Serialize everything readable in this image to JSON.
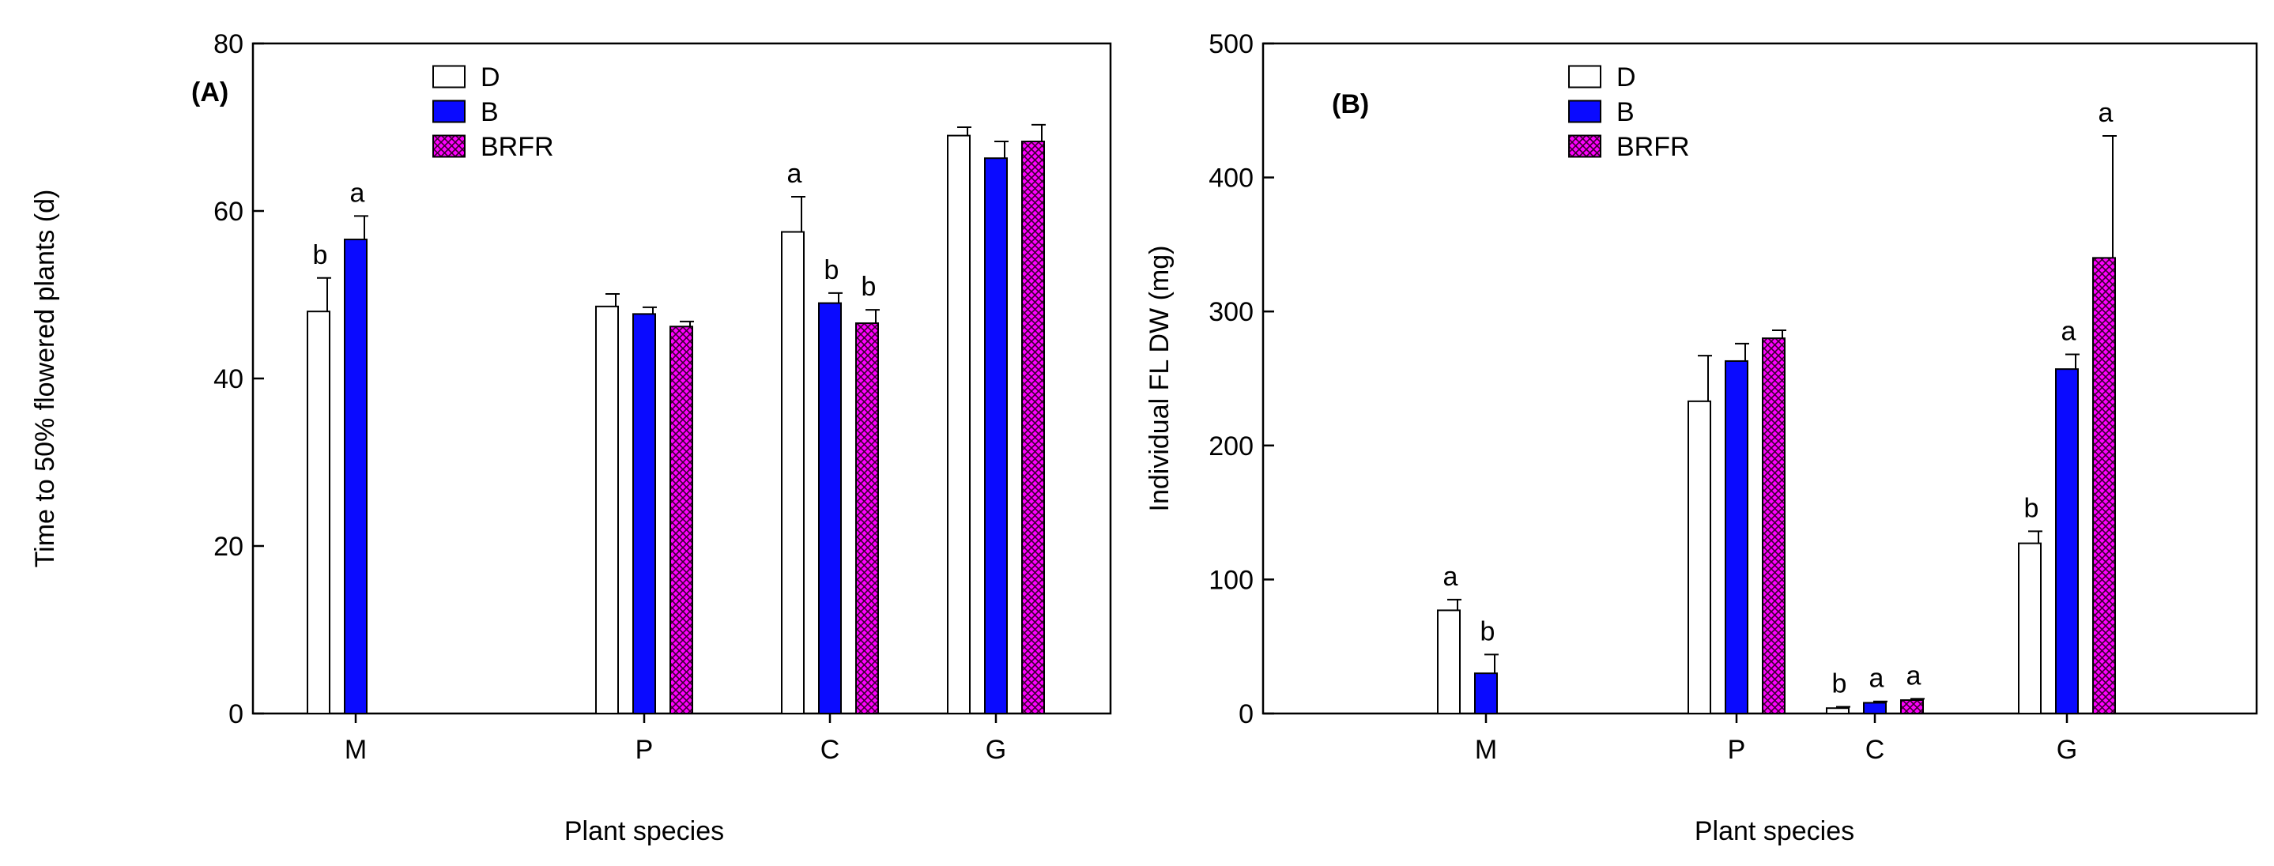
{
  "colors": {
    "D": "#ffffff",
    "B": "#0a0aff",
    "BRFR": "#ff00ff",
    "BRFR_hatch": "#3a0030",
    "axis": "#000000"
  },
  "chart_data": [
    {
      "type": "bar",
      "panel_label": "(A)",
      "categories": [
        "M",
        "P",
        "C",
        "G"
      ],
      "xlabel": "Plant species",
      "ylabel": "Time to 50% flowered plants (d)",
      "ylim": [
        0,
        80
      ],
      "yticks": [
        0,
        20,
        40,
        60,
        80
      ],
      "legend_position": "top-center",
      "series": [
        {
          "name": "D",
          "values": [
            48,
            48.6,
            57.5,
            69
          ],
          "errors": [
            4,
            1.5,
            4.2,
            1
          ],
          "letters": [
            "b",
            "",
            "a",
            ""
          ]
        },
        {
          "name": "B",
          "values": [
            56.6,
            47.7,
            49,
            66.3
          ],
          "errors": [
            2.8,
            0.8,
            1.2,
            2
          ],
          "letters": [
            "a",
            "",
            "b",
            ""
          ]
        },
        {
          "name": "BRFR",
          "values": [
            null,
            46.2,
            46.6,
            68.3
          ],
          "errors": [
            null,
            0.6,
            1.6,
            2
          ],
          "letters": [
            "",
            "",
            "b",
            ""
          ]
        }
      ]
    },
    {
      "type": "bar",
      "panel_label": "(B)",
      "categories": [
        "M",
        "P",
        "C",
        "G"
      ],
      "xlabel": "Plant species",
      "ylabel": "Individual FL DW (mg)",
      "ylim": [
        0,
        500
      ],
      "yticks": [
        0,
        100,
        200,
        300,
        400,
        500
      ],
      "legend_position": "top-center",
      "series": [
        {
          "name": "D",
          "values": [
            77,
            233,
            4,
            127
          ],
          "errors": [
            8,
            34,
            1,
            9
          ],
          "letters": [
            "a",
            "",
            "b",
            "b"
          ]
        },
        {
          "name": "B",
          "values": [
            30,
            263,
            8,
            257
          ],
          "errors": [
            14,
            13,
            1,
            11
          ],
          "letters": [
            "b",
            "",
            "a",
            "a"
          ]
        },
        {
          "name": "BRFR",
          "values": [
            null,
            280,
            10,
            340
          ],
          "errors": [
            null,
            6,
            1,
            91
          ],
          "letters": [
            "",
            "",
            "a",
            "a"
          ]
        }
      ]
    }
  ]
}
